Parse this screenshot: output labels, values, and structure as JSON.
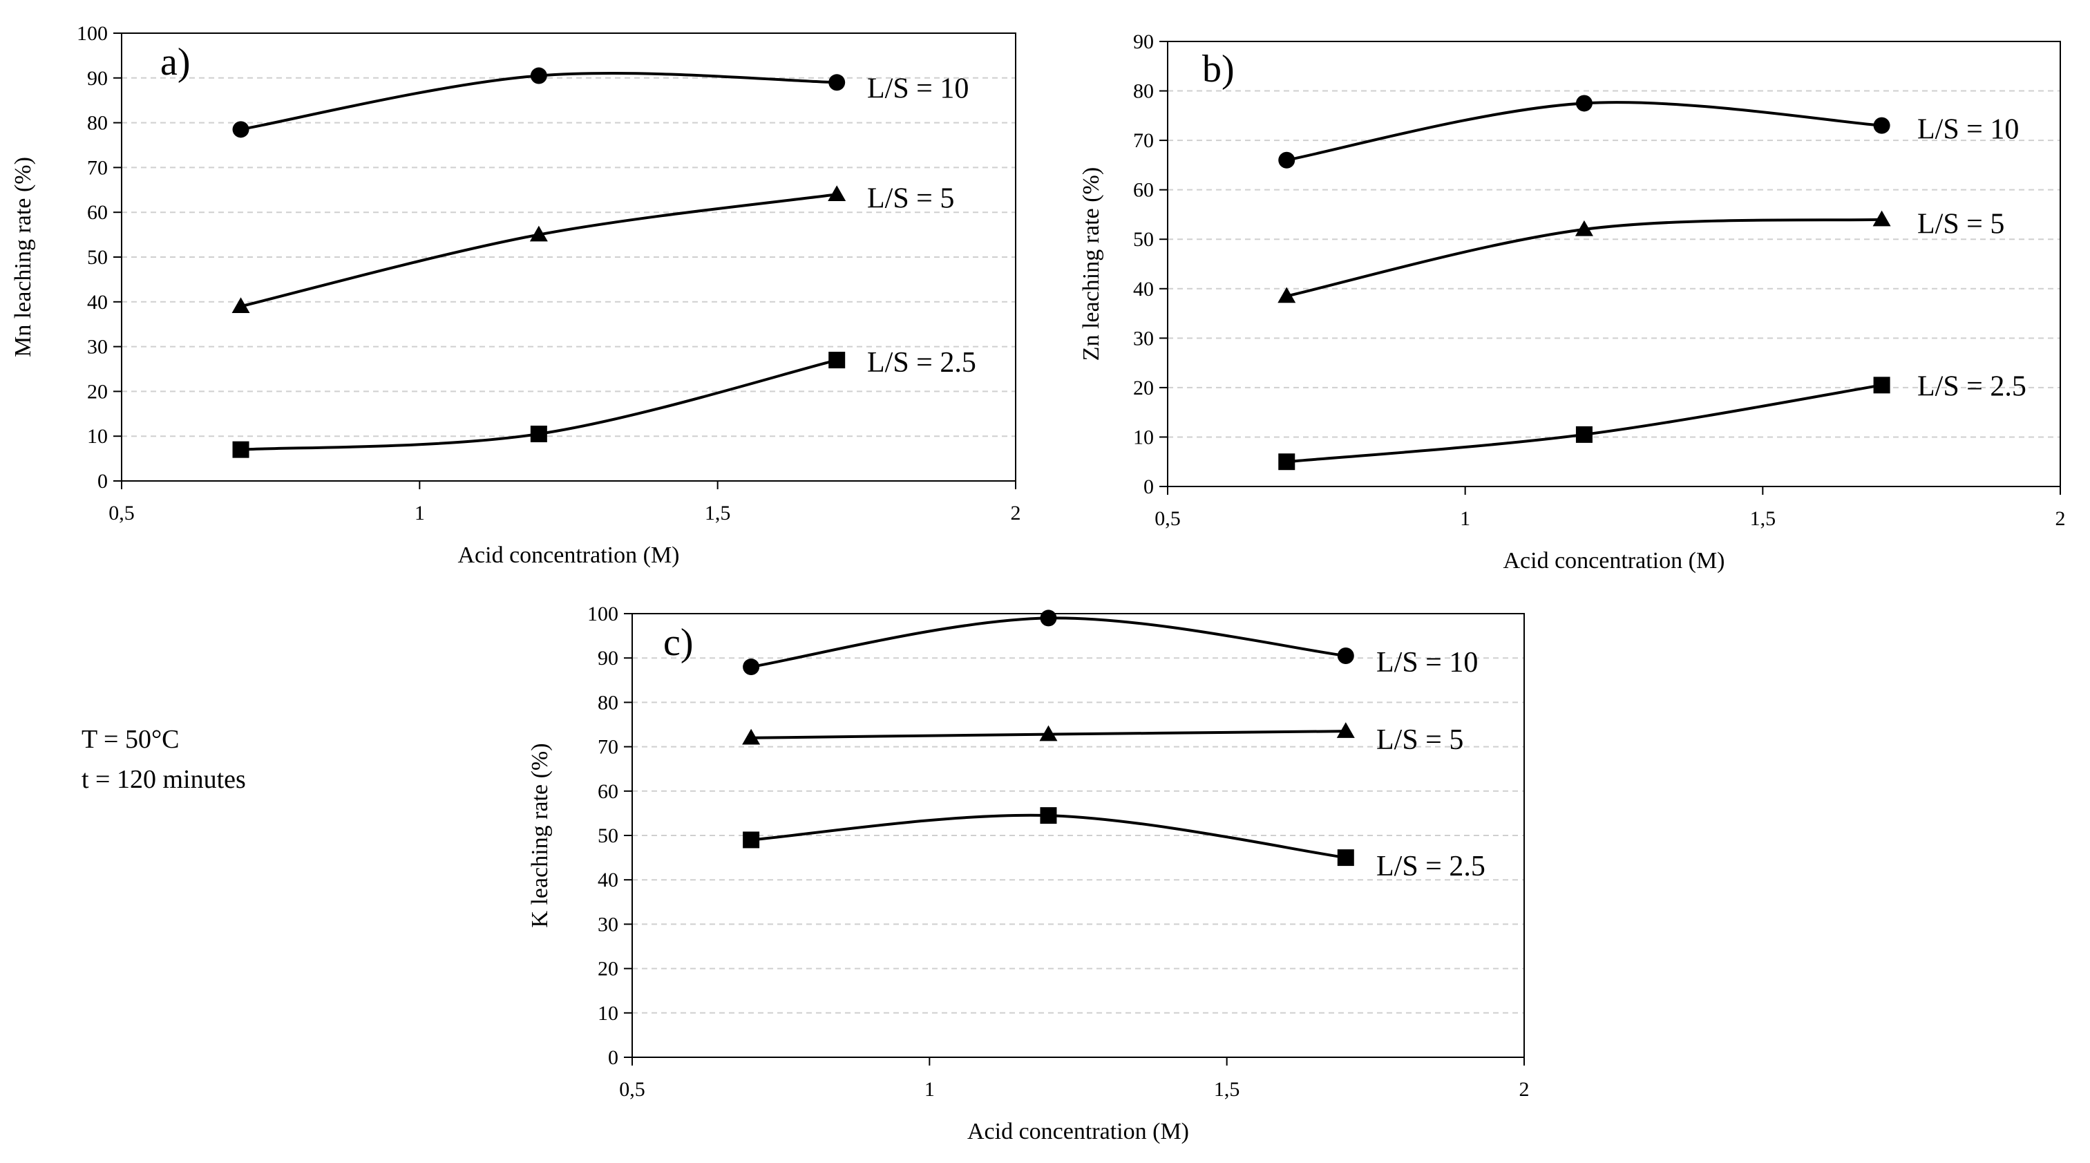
{
  "conditions": {
    "temperature": "T = 50°C",
    "time": "t = 120 minutes"
  },
  "chart_data": [
    {
      "type": "line",
      "panel": "a)",
      "title": "",
      "xlabel": "Acid concentration (M)",
      "ylabel": "Mn leaching rate (%)",
      "xlim": [
        0.5,
        2
      ],
      "ylim": [
        0,
        100
      ],
      "xticks": [
        0.5,
        1,
        1.5,
        2
      ],
      "xtick_labels": [
        "0,5",
        "1",
        "1,5",
        "2"
      ],
      "yticks": [
        0,
        10,
        20,
        30,
        40,
        50,
        60,
        70,
        80,
        90,
        100
      ],
      "grid": "horizontal dashed",
      "x": [
        0.7,
        1.2,
        1.7
      ],
      "series": [
        {
          "name": "L/S = 10",
          "marker": "circle",
          "values": [
            78.5,
            90.5,
            89
          ]
        },
        {
          "name": "L/S = 5",
          "marker": "triangle",
          "values": [
            39,
            55,
            64
          ]
        },
        {
          "name": "L/S = 2.5",
          "marker": "square",
          "values": [
            7,
            10.5,
            27
          ]
        }
      ]
    },
    {
      "type": "line",
      "panel": "b)",
      "title": "",
      "xlabel": "Acid concentration (M)",
      "ylabel": "Zn leaching rate  (%)",
      "xlim": [
        0.5,
        2
      ],
      "ylim": [
        0,
        90
      ],
      "xticks": [
        0.5,
        1,
        1.5,
        2
      ],
      "xtick_labels": [
        "0,5",
        "1",
        "1,5",
        "2"
      ],
      "yticks": [
        0,
        10,
        20,
        30,
        40,
        50,
        60,
        70,
        80,
        90
      ],
      "grid": "horizontal dashed",
      "x": [
        0.7,
        1.2,
        1.7
      ],
      "series": [
        {
          "name": "L/S = 10",
          "marker": "circle",
          "values": [
            66,
            77.5,
            73
          ]
        },
        {
          "name": "L/S = 5",
          "marker": "triangle",
          "values": [
            38.5,
            52,
            54
          ]
        },
        {
          "name": "L/S = 2.5",
          "marker": "square",
          "values": [
            5,
            10.5,
            20.5
          ]
        }
      ]
    },
    {
      "type": "line",
      "panel": "c)",
      "title": "",
      "xlabel": "Acid concentration (M)",
      "ylabel": "K leaching rate  (%)",
      "xlim": [
        0.5,
        2
      ],
      "ylim": [
        0,
        100
      ],
      "xticks": [
        0.5,
        1,
        1.5,
        2
      ],
      "xtick_labels": [
        "0,5",
        "1",
        "1,5",
        "2"
      ],
      "yticks": [
        0,
        10,
        20,
        30,
        40,
        50,
        60,
        70,
        80,
        90,
        100
      ],
      "grid": "horizontal dashed",
      "x": [
        0.7,
        1.2,
        1.7
      ],
      "series": [
        {
          "name": "L/S = 10",
          "marker": "circle",
          "values": [
            88,
            99,
            90.5
          ]
        },
        {
          "name": "L/S = 5",
          "marker": "triangle",
          "values": [
            72,
            72.8,
            73.5
          ]
        },
        {
          "name": "L/S = 2.5",
          "marker": "square",
          "values": [
            49,
            54.5,
            45
          ]
        }
      ]
    }
  ]
}
